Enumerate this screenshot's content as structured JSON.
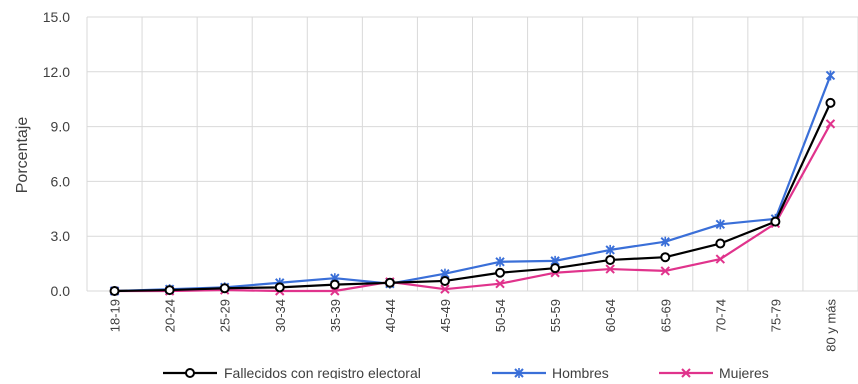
{
  "chart_data": {
    "type": "line",
    "title": "",
    "xlabel": "",
    "ylabel": "Porcentaje",
    "ylim": [
      0,
      15
    ],
    "yticks": [
      "0.0",
      "3.0",
      "6.0",
      "9.0",
      "12.0",
      "15.0"
    ],
    "grid": true,
    "legend_position": "bottom",
    "categories": [
      "18-19",
      "20-24",
      "25-29",
      "30-34",
      "35-39",
      "40-44",
      "45-49",
      "50-54",
      "55-59",
      "60-64",
      "65-69",
      "70-74",
      "75-79",
      "80 y más"
    ],
    "series": [
      {
        "name": "Fallecidos con registro electoral",
        "color": "#000000",
        "marker": "circle",
        "values": [
          0.0,
          0.05,
          0.15,
          0.2,
          0.35,
          0.45,
          0.55,
          1.0,
          1.25,
          1.7,
          1.85,
          2.6,
          3.8,
          10.3
        ]
      },
      {
        "name": "Hombres",
        "color": "#3a6fd8",
        "marker": "x-star",
        "values": [
          0.0,
          0.1,
          0.2,
          0.45,
          0.7,
          0.4,
          0.95,
          1.6,
          1.65,
          2.25,
          2.7,
          3.65,
          3.95,
          11.8
        ]
      },
      {
        "name": "Mujeres",
        "color": "#e0338c",
        "marker": "x",
        "values": [
          0.0,
          0.0,
          0.05,
          0.0,
          0.0,
          0.5,
          0.1,
          0.4,
          1.0,
          1.2,
          1.1,
          1.75,
          3.7,
          9.15
        ]
      }
    ]
  }
}
